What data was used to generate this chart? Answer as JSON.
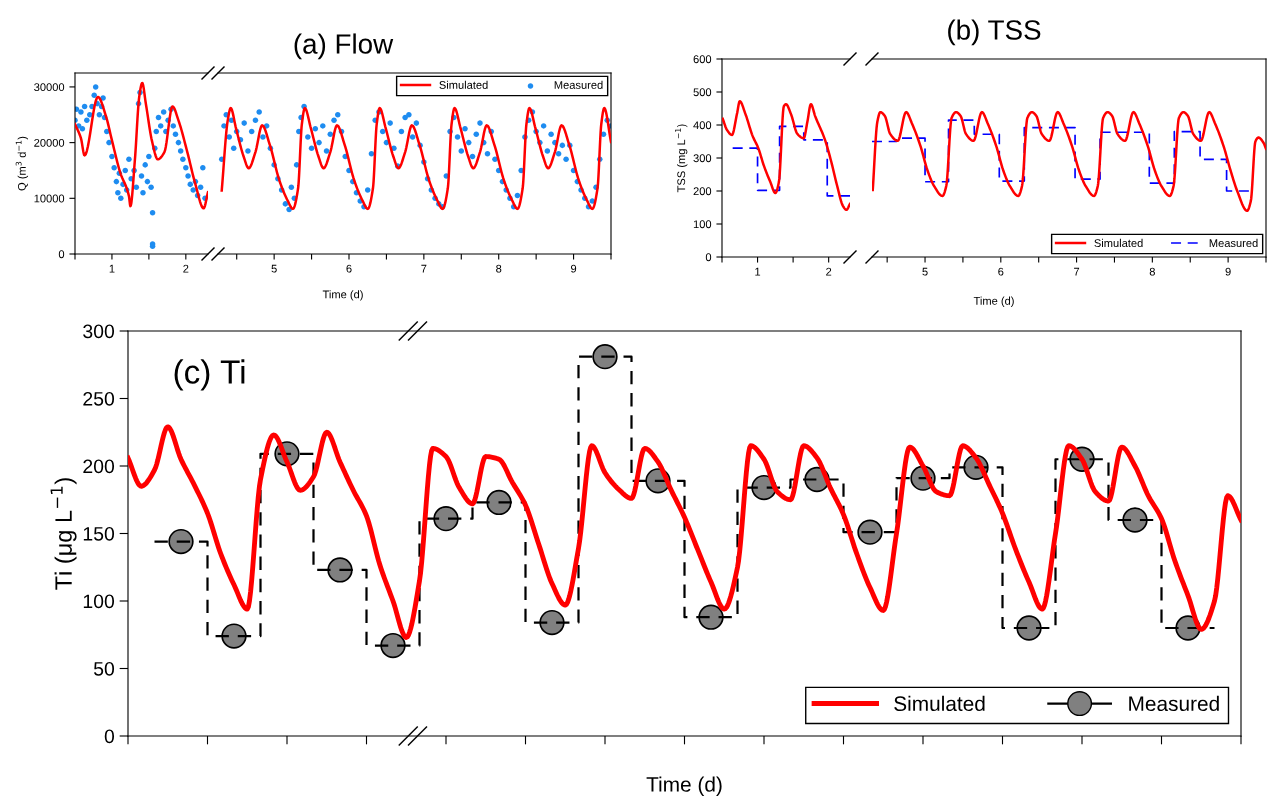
{
  "chart_data": [
    {
      "type": "line",
      "ylabel": "Q (m$^{3}$ d$^{−1}$)",
      "xlim": [
        0.5,
        2.3
      ],
      "ylim": [
        0,
        32500
      ],
      "xticks": [
        {
          "value": 0.5,
          "label": null
        },
        1,
        {
          "value": 1.5,
          "label": null
        },
        2
      ],
      "yticks": [
        0,
        10000,
        20000,
        30000
      ],
      "series": [
        {
          "color": "#ff0000",
          "line_style": "solid",
          "x": [
            0.5,
            0.58,
            0.63,
            0.81,
            0.92,
            1.0,
            1.11,
            1.23,
            1.25,
            1.31,
            1.37,
            1.41,
            1.46,
            1.54,
            1.62,
            1.71,
            1.82,
            1.9,
            2.02,
            2.13,
            2.24,
            2.3
          ],
          "values": [
            23300,
            20800,
            17700,
            28200,
            24700,
            20400,
            14700,
            10400,
            8600,
            16800,
            28300,
            30700,
            26900,
            20400,
            17000,
            18300,
            26500,
            24000,
            18300,
            12500,
            8200,
            11100
          ]
        },
        {
          "type": "scatter",
          "color": "#1e8cf0",
          "marker": "circle",
          "x": [
            0.5,
            0.52,
            0.55,
            0.58,
            0.6,
            0.63,
            0.66,
            0.7,
            0.73,
            0.76,
            0.78,
            0.8,
            0.83,
            0.86,
            0.88,
            0.9,
            0.93,
            0.96,
            1.0,
            1.03,
            1.06,
            1.08,
            1.1,
            1.12,
            1.15,
            1.18,
            1.2,
            1.23,
            1.26,
            1.3,
            1.33,
            1.36,
            1.38,
            1.4,
            1.42,
            1.45,
            1.48,
            1.5,
            1.53,
            1.55,
            1.55,
            1.55,
            1.58,
            1.6,
            1.63,
            1.66,
            1.7,
            1.73,
            1.76,
            1.8,
            1.83,
            1.86,
            1.9,
            1.93,
            1.96,
            2.0,
            2.03,
            2.06,
            2.1,
            2.13,
            2.16,
            2.2,
            2.23,
            2.26
          ],
          "values": [
            24000,
            26000,
            23000,
            25500,
            22500,
            26500,
            24000,
            25000,
            26500,
            28500,
            30000,
            27000,
            25000,
            26500,
            28000,
            24500,
            22000,
            20000,
            17500,
            15500,
            13000,
            11000,
            14500,
            10000,
            12500,
            15000,
            11500,
            17000,
            13500,
            15000,
            12000,
            27000,
            29000,
            14000,
            11000,
            16000,
            13000,
            17500,
            12000,
            7400,
            1800,
            1400,
            19000,
            22000,
            24500,
            23000,
            25500,
            22000,
            24000,
            26000,
            23000,
            21500,
            20000,
            18500,
            17000,
            15500,
            14000,
            12500,
            11500,
            13000,
            10500,
            12000,
            15500,
            10000
          ]
        }
      ]
    },
    {
      "type": "line",
      "title": "(a) Flow",
      "xlabel": "Time (d)",
      "xlim": [
        4.25,
        9.5
      ],
      "ylim": [
        0,
        32500
      ],
      "tick_labels": "x",
      "legend": "top right",
      "xticks": [
        {
          "value": 4.5,
          "label": null
        },
        5,
        {
          "value": 5.5,
          "label": null
        },
        6,
        {
          "value": 6.5,
          "label": null
        },
        7,
        {
          "value": 7.5,
          "label": null
        },
        8,
        {
          "value": 8.5,
          "label": null
        },
        9,
        {
          "value": 9.5,
          "label": null
        }
      ],
      "series": [
        {
          "name": "Simulated",
          "color": "#ff0000",
          "line_style": "solid",
          "x": [
            4.3,
            4.38,
            4.42,
            4.49,
            4.59,
            4.66,
            4.75,
            4.84,
            4.94,
            5.07,
            5.18,
            5.25,
            5.32,
            5.37,
            5.41,
            5.49,
            5.59,
            5.66,
            5.75,
            5.84,
            5.94,
            6.07,
            6.18,
            6.25,
            6.32,
            6.37,
            6.41,
            6.49,
            6.59,
            6.66,
            6.75,
            6.84,
            6.94,
            7.07,
            7.18,
            7.25,
            7.32,
            7.37,
            7.41,
            7.49,
            7.59,
            7.66,
            7.75,
            7.84,
            7.94,
            8.07,
            8.18,
            8.25,
            8.32,
            8.37,
            8.41,
            8.49,
            8.59,
            8.66,
            8.75,
            8.84,
            8.94,
            9.07,
            9.18,
            9.25,
            9.32,
            9.37,
            9.41,
            9.5
          ],
          "values": [
            11400,
            24000,
            26200,
            22600,
            17600,
            15400,
            18300,
            23100,
            19700,
            13200,
            9600,
            8100,
            11800,
            23300,
            26200,
            22600,
            17600,
            15400,
            18300,
            23100,
            19700,
            13200,
            9600,
            8100,
            11800,
            23300,
            26200,
            22600,
            17600,
            15400,
            18300,
            23100,
            19700,
            13200,
            9600,
            8100,
            11800,
            23300,
            26200,
            22600,
            17600,
            15400,
            18300,
            23100,
            19700,
            13200,
            9600,
            8100,
            11800,
            23300,
            26200,
            22600,
            17600,
            15400,
            18300,
            23100,
            19700,
            13200,
            9600,
            8100,
            11800,
            23300,
            26200,
            20100
          ]
        },
        {
          "type": "scatter",
          "name": "Measured",
          "color": "#1e8cf0",
          "marker": "circle",
          "x": [
            4.3,
            4.33,
            4.36,
            4.4,
            4.43,
            4.46,
            4.5,
            4.55,
            4.6,
            4.65,
            4.7,
            4.75,
            4.8,
            4.85,
            4.9,
            4.95,
            5.0,
            5.05,
            5.1,
            5.15,
            5.2,
            5.23,
            5.27,
            5.3,
            5.33,
            5.36,
            5.4,
            5.45,
            5.5,
            5.55,
            5.6,
            5.65,
            5.7,
            5.75,
            5.8,
            5.85,
            5.9,
            5.95,
            6.0,
            6.05,
            6.1,
            6.15,
            6.2,
            6.25,
            6.3,
            6.35,
            6.4,
            6.45,
            6.5,
            6.55,
            6.6,
            6.65,
            6.7,
            6.75,
            6.8,
            6.85,
            6.9,
            6.95,
            7.0,
            7.05,
            7.1,
            7.15,
            7.2,
            7.25,
            7.3,
            7.35,
            7.4,
            7.45,
            7.5,
            7.55,
            7.6,
            7.65,
            7.7,
            7.75,
            7.8,
            7.85,
            7.9,
            7.95,
            8.0,
            8.05,
            8.1,
            8.15,
            8.2,
            8.25,
            8.3,
            8.35,
            8.4,
            8.45,
            8.5,
            8.55,
            8.6,
            8.65,
            8.7,
            8.75,
            8.8,
            8.85,
            8.9,
            8.95,
            9.0,
            9.05,
            9.1,
            9.15,
            9.2,
            9.25,
            9.3,
            9.35,
            9.4,
            9.45,
            9.5
          ],
          "values": [
            17000,
            23000,
            25000,
            21000,
            24000,
            19000,
            22000,
            20500,
            23500,
            18500,
            22000,
            24000,
            25500,
            21000,
            23000,
            19000,
            16000,
            13500,
            11500,
            9000,
            8000,
            12000,
            10000,
            16000,
            22000,
            24500,
            26500,
            21000,
            19000,
            22500,
            20000,
            23000,
            18500,
            21500,
            24000,
            25000,
            22000,
            17500,
            15000,
            13000,
            11000,
            9500,
            8500,
            11500,
            18000,
            24000,
            25500,
            22000,
            20000,
            23500,
            19000,
            15800,
            22000,
            24500,
            25000,
            21000,
            23500,
            19500,
            16500,
            13500,
            11500,
            10000,
            9000,
            8500,
            14000,
            22000,
            24500,
            21000,
            18500,
            22500,
            20000,
            17500,
            21500,
            23500,
            20000,
            18000,
            22000,
            17000,
            15000,
            13000,
            11500,
            10000,
            8500,
            10500,
            15000,
            21000,
            24000,
            25500,
            22000,
            20000,
            23000,
            18500,
            21500,
            20000,
            18000,
            19500,
            17000,
            19500,
            15000,
            13000,
            11500,
            10000,
            8500,
            9500,
            12000,
            17000,
            21500,
            24000,
            23000
          ]
        }
      ]
    },
    {
      "type": "line",
      "ylabel": "TSS (mg L$^{−1}$)",
      "xlim": [
        0.5,
        2.3
      ],
      "ylim": [
        0,
        600
      ],
      "xticks": [
        {
          "value": 0.5,
          "label": null
        },
        1,
        {
          "value": 1.5,
          "label": null
        },
        2
      ],
      "yticks": [
        0,
        100,
        200,
        300,
        400,
        500,
        600
      ],
      "series": [
        {
          "color": "#ff0000",
          "line_style": "solid",
          "x": [
            0.51,
            0.57,
            0.64,
            0.71,
            0.75,
            0.83,
            0.93,
            1.01,
            1.09,
            1.18,
            1.25,
            1.3,
            1.37,
            1.4,
            1.47,
            1.56,
            1.65,
            1.7,
            1.75,
            1.81,
            1.95,
            2.03,
            2.12,
            2.2,
            2.25,
            2.3
          ],
          "values": [
            419,
            385,
            370,
            433,
            472,
            433,
            367,
            330,
            276,
            227,
            194,
            227,
            457,
            463,
            433,
            373,
            360,
            409,
            463,
            427,
            354,
            294,
            215,
            155,
            143,
            161
          ]
        },
        {
          "type": "step",
          "color": "#0000ff",
          "line_style": "dashed",
          "x": [
            0.65,
            1.0,
            1.31,
            1.65,
            1.98,
            2.3
          ],
          "values": [
            330,
            202,
            396,
            355,
            185,
            185
          ]
        }
      ]
    },
    {
      "type": "line",
      "title": "(b) TSS",
      "xlabel": "Time (d)",
      "xlim": [
        4.3,
        9.5
      ],
      "ylim": [
        0,
        600
      ],
      "tick_labels": "x",
      "legend": "bottom right",
      "xticks": [
        {
          "value": 4.5,
          "label": null
        },
        5,
        {
          "value": 5.5,
          "label": null
        },
        6,
        {
          "value": 6.5,
          "label": null
        },
        7,
        {
          "value": 7.5,
          "label": null
        },
        8,
        {
          "value": 8.5,
          "label": null
        },
        9,
        {
          "value": 9.5,
          "label": null
        }
      ],
      "series": [
        {
          "name": "Simulated",
          "color": "#ff0000",
          "line_style": "solid",
          "x": [
            4.31,
            4.37,
            4.41,
            4.47,
            4.54,
            4.64,
            4.75,
            4.83,
            4.94,
            5.03,
            5.12,
            5.23,
            5.28,
            5.35,
            5.41,
            5.47,
            5.54,
            5.64,
            5.75,
            5.83,
            5.94,
            6.03,
            6.12,
            6.23,
            6.28,
            6.35,
            6.41,
            6.47,
            6.54,
            6.64,
            6.75,
            6.83,
            6.94,
            7.03,
            7.12,
            7.23,
            7.28,
            7.35,
            7.41,
            7.47,
            7.54,
            7.64,
            7.75,
            7.83,
            7.94,
            8.03,
            8.12,
            8.23,
            8.28,
            8.35,
            8.41,
            8.47,
            8.54,
            8.64,
            8.75,
            8.83,
            8.94,
            9.03,
            9.12,
            9.25,
            9.3,
            9.36,
            9.4,
            9.47,
            9.5
          ],
          "values": [
            203,
            409,
            439,
            427,
            373,
            352,
            439,
            403,
            336,
            264,
            215,
            185,
            215,
            421,
            439,
            427,
            373,
            352,
            439,
            403,
            336,
            264,
            215,
            185,
            215,
            421,
            439,
            427,
            373,
            352,
            439,
            403,
            336,
            264,
            215,
            185,
            215,
            421,
            439,
            427,
            373,
            352,
            439,
            403,
            336,
            264,
            215,
            185,
            215,
            421,
            439,
            427,
            373,
            352,
            439,
            403,
            336,
            264,
            200,
            140,
            170,
            350,
            362,
            345,
            328
          ]
        },
        {
          "type": "step",
          "name": "Measured",
          "color": "#0000ff",
          "line_style": "dashed",
          "x": [
            4.3,
            4.62,
            5.0,
            5.31,
            5.65,
            5.98,
            6.31,
            6.98,
            7.31,
            7.96,
            8.29,
            8.63,
            8.98,
            9.3
          ],
          "values": [
            350,
            360,
            228,
            415,
            372,
            230,
            392,
            236,
            378,
            224,
            380,
            296,
            200,
            200
          ]
        }
      ]
    },
    {
      "type": "line",
      "title": "(c) Ti",
      "xlabel": "Time (d)",
      "ylabel": "Ti (μg L$^{−1}$)",
      "ylim": [
        0,
        300
      ],
      "tick_labels": "y",
      "yticks": [
        0,
        50,
        100,
        150,
        200,
        250,
        300
      ],
      "legend": "bottom right",
      "categories": [
        null,
        null,
        null,
        null,
        null,
        null,
        null,
        null,
        null,
        null,
        null,
        null,
        null,
        null,
        null,
        null,
        null,
        null,
        null,
        null,
        null,
        null,
        null,
        null,
        null,
        null,
        null,
        null,
        null,
        null,
        null,
        null,
        null,
        null,
        null,
        null,
        null,
        null,
        null,
        null,
        null,
        null,
        null,
        null,
        null,
        null,
        null,
        null,
        null,
        null,
        null,
        null,
        null,
        null,
        null,
        null,
        null,
        null,
        null,
        null,
        null,
        null,
        null,
        null,
        null,
        null,
        null,
        null,
        null,
        null,
        null,
        null,
        null,
        null,
        null,
        null,
        null,
        null,
        null,
        null,
        null,
        null,
        null,
        null,
        null
      ],
      "series": [
        {
          "name": "Simulated",
          "color": "#ff0000",
          "line_style": "solid",
          "values": [
            206,
            185,
            197,
            229,
            205,
            186,
            165,
            135,
            112,
            94,
            190,
            223,
            203,
            182,
            192,
            225,
            203,
            182,
            163,
            127,
            100,
            73,
            115,
            213,
            207,
            184,
            172,
            207,
            205,
            188,
            171,
            142,
            113,
            97,
            139,
            215,
            195,
            183,
            176,
            213,
            203,
            182,
            162,
            138,
            114,
            94,
            125,
            215,
            205,
            181,
            175,
            215,
            206,
            184,
            164,
            135,
            110,
            93,
            150,
            214,
            200,
            181,
            178,
            215,
            206,
            186,
            165,
            138,
            114,
            94,
            150,
            215,
            205,
            181,
            174,
            214,
            200,
            178,
            161,
            130,
            104,
            79,
            100,
            178,
            160
          ]
        },
        {
          "type": "step",
          "color": "#000000",
          "line_style": "dashed",
          "values": [
            null,
            null,
            144,
            144,
            144,
            144,
            74,
            74,
            74,
            74,
            209,
            209,
            209,
            209,
            123,
            123,
            123,
            123,
            67,
            67,
            67,
            67,
            161,
            161,
            161,
            161,
            173,
            173,
            173,
            173,
            84,
            84,
            84,
            84,
            281,
            281,
            281,
            281,
            189,
            189,
            189,
            189,
            88,
            88,
            88,
            88,
            184,
            184,
            184,
            184,
            190,
            190,
            190,
            190,
            151,
            151,
            151,
            151,
            191,
            191,
            191,
            191,
            199,
            199,
            199,
            199,
            80,
            80,
            80,
            80,
            205,
            205,
            205,
            205,
            160,
            160,
            160,
            160,
            80,
            80,
            80,
            80,
            80,
            null,
            null
          ]
        },
        {
          "type": "scatter",
          "name": "Measured",
          "color": "#808080",
          "marker": "circle",
          "values": [
            null,
            null,
            null,
            null,
            144,
            null,
            null,
            null,
            74,
            null,
            null,
            null,
            209,
            null,
            null,
            null,
            123,
            null,
            null,
            null,
            67,
            null,
            null,
            null,
            161,
            null,
            null,
            null,
            173,
            null,
            null,
            null,
            84,
            null,
            null,
            null,
            281,
            null,
            null,
            null,
            189,
            null,
            null,
            null,
            88,
            null,
            null,
            null,
            184,
            null,
            null,
            null,
            190,
            null,
            null,
            null,
            151,
            null,
            null,
            null,
            191,
            null,
            null,
            null,
            199,
            null,
            null,
            null,
            80,
            null,
            null,
            null,
            205,
            null,
            null,
            null,
            160,
            null,
            null,
            null,
            80,
            null,
            null,
            null,
            null
          ]
        }
      ]
    }
  ]
}
